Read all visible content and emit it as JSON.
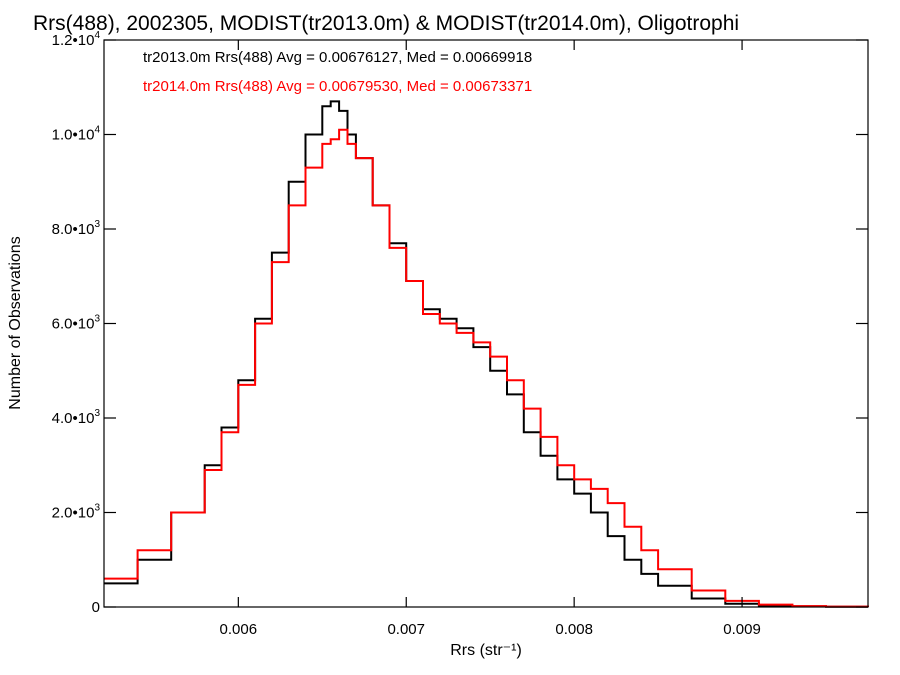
{
  "chart_data": {
    "type": "line",
    "title": "Rrs(488), 2002305, MODIST(tr2013.0m) & MODIST(tr2014.0m), Oligotrophi",
    "xlabel": "Rrs (str⁻¹)",
    "ylabel": "Number of Observations",
    "xlim": [
      0.0052,
      0.00975
    ],
    "ylim": [
      0,
      12000
    ],
    "x_ticks": [
      {
        "value": 0.006,
        "label": "0.006"
      },
      {
        "value": 0.007,
        "label": "0.007"
      },
      {
        "value": 0.008,
        "label": "0.008"
      },
      {
        "value": 0.009,
        "label": "0.009"
      }
    ],
    "y_ticks": [
      {
        "value": 0,
        "base": "0",
        "exp": ""
      },
      {
        "value": 2000,
        "base": "2.0•10",
        "exp": "3"
      },
      {
        "value": 4000,
        "base": "4.0•10",
        "exp": "3"
      },
      {
        "value": 6000,
        "base": "6.0•10",
        "exp": "3"
      },
      {
        "value": 8000,
        "base": "8.0•10",
        "exp": "3"
      },
      {
        "value": 10000,
        "base": "1.0•10",
        "exp": "4"
      },
      {
        "value": 12000,
        "base": "1.2•10",
        "exp": "4"
      }
    ],
    "grid": false,
    "legend_position": "top-left",
    "series": [
      {
        "name": "tr2013.0m Rrs(488) Avg = 0.00676127, Med = 0.00669918",
        "color": "#000000",
        "x": [
          0.0052,
          0.0054,
          0.0056,
          0.0058,
          0.0059,
          0.006,
          0.0061,
          0.0062,
          0.0063,
          0.0064,
          0.0065,
          0.00655,
          0.0066,
          0.00665,
          0.0067,
          0.0068,
          0.0069,
          0.007,
          0.0071,
          0.0072,
          0.0073,
          0.0074,
          0.0075,
          0.0076,
          0.0077,
          0.0078,
          0.0079,
          0.008,
          0.0081,
          0.0082,
          0.0083,
          0.0084,
          0.0085,
          0.0087,
          0.0089,
          0.0091,
          0.0093,
          0.0095,
          0.00975
        ],
        "y": [
          500,
          1000,
          2000,
          3000,
          3800,
          4800,
          6100,
          7500,
          9000,
          10000,
          10600,
          10700,
          10500,
          10000,
          9500,
          8500,
          7700,
          6900,
          6300,
          6100,
          5900,
          5500,
          5000,
          4500,
          3700,
          3200,
          2700,
          2400,
          2000,
          1500,
          1000,
          700,
          450,
          180,
          70,
          30,
          15,
          5,
          0
        ]
      },
      {
        "name": "tr2014.0m Rrs(488) Avg = 0.00679530, Med = 0.00673371",
        "color": "#ff0000",
        "x": [
          0.0052,
          0.0054,
          0.0056,
          0.0058,
          0.0059,
          0.006,
          0.0061,
          0.0062,
          0.0063,
          0.0064,
          0.0065,
          0.00655,
          0.0066,
          0.00665,
          0.0067,
          0.0068,
          0.0069,
          0.007,
          0.0071,
          0.0072,
          0.0073,
          0.0074,
          0.0075,
          0.0076,
          0.0077,
          0.0078,
          0.0079,
          0.008,
          0.0081,
          0.0082,
          0.0083,
          0.0084,
          0.0085,
          0.0087,
          0.0089,
          0.0091,
          0.0093,
          0.0095,
          0.00975
        ],
        "y": [
          600,
          1200,
          2000,
          2900,
          3700,
          4700,
          6000,
          7300,
          8500,
          9300,
          9800,
          9900,
          10100,
          9800,
          9500,
          8500,
          7600,
          6900,
          6200,
          6000,
          5800,
          5600,
          5300,
          4800,
          4200,
          3600,
          3000,
          2700,
          2500,
          2200,
          1700,
          1200,
          800,
          350,
          130,
          50,
          20,
          8,
          0
        ]
      }
    ]
  }
}
